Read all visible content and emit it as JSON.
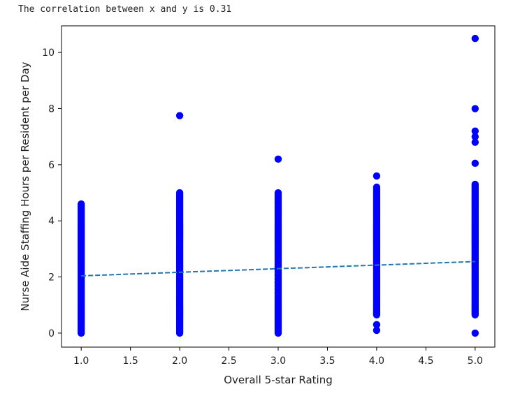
{
  "output_text": "The correlation between x and y is 0.31",
  "chart_data": {
    "type": "scatter",
    "xlabel": "Overall 5-star Rating",
    "ylabel": "Nurse Aide Staffing Hours per Resident per Day",
    "xlim": [
      0.8,
      5.2
    ],
    "ylim": [
      -0.5,
      10.95
    ],
    "xticks": [
      "1.0",
      "1.5",
      "2.0",
      "2.5",
      "3.0",
      "3.5",
      "4.0",
      "4.5",
      "5.0"
    ],
    "yticks": [
      "0",
      "2",
      "4",
      "6",
      "8",
      "10"
    ],
    "grid": false,
    "legend": "none",
    "series": [
      {
        "kind": "points",
        "color": "#0000ff",
        "columns": [
          {
            "x": 1.0,
            "range": [
              0.0,
              4.55
            ],
            "extra_points": [
              4.6
            ]
          },
          {
            "x": 2.0,
            "range": [
              0.0,
              5.0
            ],
            "extra_points": [
              7.75
            ]
          },
          {
            "x": 3.0,
            "range": [
              0.0,
              5.0
            ],
            "extra_points": [
              6.2
            ]
          },
          {
            "x": 4.0,
            "range": [
              0.65,
              5.2
            ],
            "extra_points": [
              0.1,
              0.3,
              5.6
            ]
          },
          {
            "x": 5.0,
            "range": [
              0.65,
              5.3
            ],
            "extra_points": [
              0.0,
              6.05,
              6.8,
              7.0,
              7.2,
              8.0,
              10.5
            ]
          }
        ]
      },
      {
        "kind": "trend_line",
        "style": "dashed",
        "color": "#1f77b4",
        "x": [
          1.0,
          5.0
        ],
        "y": [
          2.04,
          2.55
        ]
      }
    ]
  }
}
